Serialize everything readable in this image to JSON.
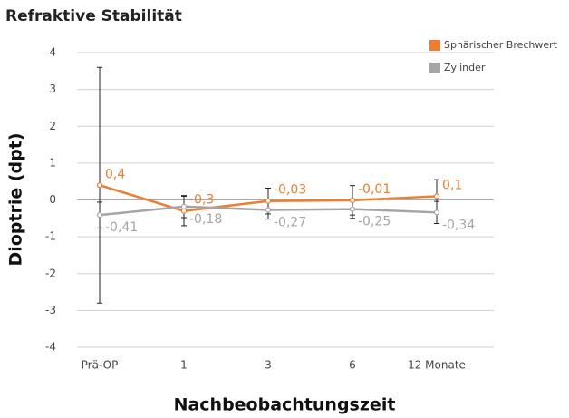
{
  "chart_data": {
    "type": "line",
    "title": "Refraktive Stabilität",
    "xlabel": "Nachbeobachtungszeit",
    "ylabel": "Dioptrie (dpt)",
    "categories": [
      "Prä-OP",
      "1",
      "3",
      "6",
      "12 Monate"
    ],
    "series": [
      {
        "name": "Sphärischer Brechwert",
        "color": "#ed7d31",
        "values": [
          0.4,
          -0.3,
          -0.03,
          -0.01,
          0.1
        ],
        "value_labels": [
          "0,4",
          "-0,3",
          "-0,03",
          "-0,01",
          "0,1"
        ],
        "errors": [
          3.2,
          0.4,
          0.35,
          0.4,
          0.45
        ]
      },
      {
        "name": "Zylinder",
        "color": "#a5a5a5",
        "values": [
          -0.41,
          -0.18,
          -0.27,
          -0.25,
          -0.34
        ],
        "value_labels": [
          "-0,41",
          "-0,18",
          "-0,27",
          "-0,25",
          "-0,34"
        ],
        "errors": [
          0.35,
          0.3,
          0.25,
          0.25,
          0.3
        ]
      }
    ],
    "ylim": [
      -4,
      4
    ],
    "yticks": [
      -4,
      -3,
      -2,
      -1,
      0,
      1,
      2,
      3,
      4
    ],
    "grid": true,
    "legend": "top-right"
  }
}
